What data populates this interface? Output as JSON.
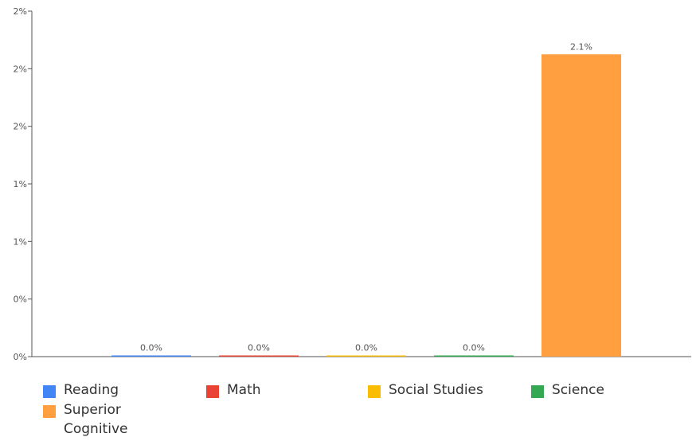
{
  "chart_data": {
    "type": "bar",
    "categories": [
      "Reading",
      "Math",
      "Social Studies",
      "Science",
      "Superior Cognitive"
    ],
    "series": [
      {
        "name": "",
        "values": [
          0.0,
          0.0,
          0.0,
          0.0,
          2.1
        ]
      }
    ],
    "data_labels": [
      "0.0%",
      "0.0%",
      "0.0%",
      "0.0%",
      "2.1%"
    ],
    "colors": [
      "#4285F4",
      "#EA4335",
      "#FBBC04",
      "#34A853",
      "#FF9F40"
    ],
    "title": "",
    "xlabel": "",
    "ylabel": "",
    "ylim": [
      0,
      2.4
    ],
    "yticks": [
      0,
      0.4,
      0.8,
      1.2,
      1.6,
      2.0,
      2.4
    ],
    "ytick_labels": [
      "0%",
      "0%",
      "1%",
      "1%",
      "2%",
      "2%",
      "2%"
    ],
    "grid": false,
    "legend": {
      "position": "bottom",
      "items": [
        "Reading",
        "Math",
        "Social Studies",
        "Science",
        "Superior Cognitive"
      ]
    }
  }
}
